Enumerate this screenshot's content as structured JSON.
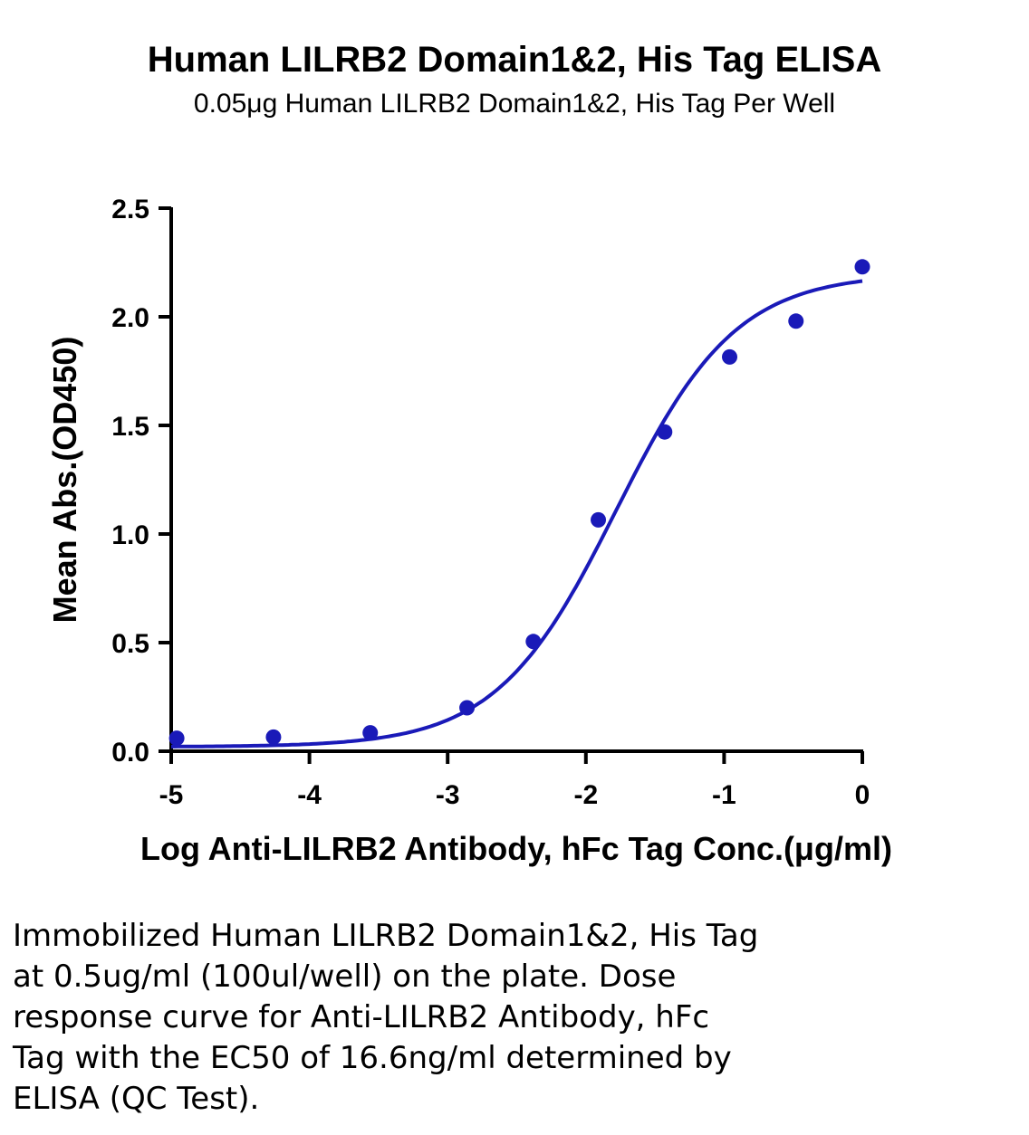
{
  "header": {
    "title": "Human LILRB2 Domain1&2, His Tag ELISA",
    "subtitle": "0.05μg Human LILRB2 Domain1&2, His Tag Per Well"
  },
  "chart_data": {
    "type": "scatter",
    "xlabel": "Log Anti-LILRB2 Antibody, hFc Tag Conc.(μg/ml)",
    "ylabel": "Mean Abs.(OD450)",
    "xlim": [
      -5,
      0
    ],
    "ylim": [
      0,
      2.5
    ],
    "x_ticks": [
      -5,
      -4,
      -3,
      -2,
      -1,
      0
    ],
    "y_ticks": [
      0.0,
      0.5,
      1.0,
      1.5,
      2.0,
      2.5
    ],
    "x_tick_labels": [
      "-5",
      "-4",
      "-3",
      "-2",
      "-1",
      "0"
    ],
    "y_tick_labels": [
      "0.0",
      "0.5",
      "1.0",
      "1.5",
      "2.0",
      "2.5"
    ],
    "grid": false,
    "color": "#1a1ab8",
    "series": [
      {
        "x": [
          -4.96,
          -4.26,
          -3.56,
          -2.86,
          -2.38,
          -1.91,
          -1.43,
          -0.96,
          -0.48,
          0.0
        ],
        "values": [
          0.06,
          0.065,
          0.085,
          0.2,
          0.505,
          1.065,
          1.47,
          1.815,
          1.98,
          2.23
        ]
      }
    ],
    "fit_curve": {
      "model": "4PL",
      "bottom": 0.02,
      "top": 2.2,
      "log_ec50": -1.78,
      "hill_slope": 1.0
    }
  },
  "caption": {
    "lines": [
      "Immobilized Human LILRB2 Domain1&2, His Tag",
      "at 0.5ug/ml (100ul/well) on the plate. Dose",
      "response curve for Anti-LILRB2 Antibody, hFc",
      "Tag with the EC50 of 16.6ng/ml determined by",
      "ELISA (QC Test)."
    ]
  }
}
